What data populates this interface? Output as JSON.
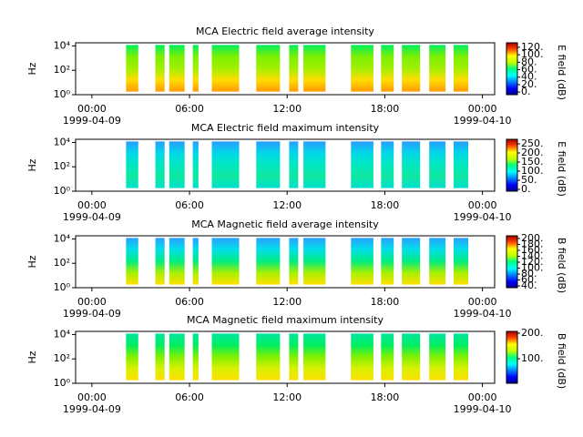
{
  "chart_data": [
    {
      "type": "spectrogram",
      "title": "MCA  Electric field average intensity",
      "ylabel": "Hz",
      "clabel": "E field (dB)",
      "xlim": [
        -1,
        24.75
      ],
      "xticks": [
        {
          "value": 0,
          "label": "00:00"
        },
        {
          "value": 6,
          "label": "06:00"
        },
        {
          "value": 12,
          "label": "12:00"
        },
        {
          "value": 18,
          "label": "18:00"
        },
        {
          "value": 24,
          "label": "00:00"
        }
      ],
      "date_labels": [
        "1999-04-09",
        "1999-04-10"
      ],
      "ylim": [
        1,
        18000
      ],
      "yscale": "log",
      "yticks": [
        {
          "value": 1,
          "label": "10⁰"
        },
        {
          "value": 100,
          "label": "10²"
        },
        {
          "value": 10000,
          "label": "10⁴"
        }
      ],
      "clim": [
        -7,
        132
      ],
      "cticks": [
        {
          "value": 0,
          "label": "0."
        },
        {
          "value": 20,
          "label": "20."
        },
        {
          "value": 40,
          "label": "40."
        },
        {
          "value": 60,
          "label": "60."
        },
        {
          "value": 80,
          "label": "80."
        },
        {
          "value": 100,
          "label": "100."
        },
        {
          "value": 120,
          "label": "120."
        }
      ],
      "freq_range": [
        1.8,
        12000
      ],
      "colors": [
        "#00ee60",
        "#7cf000",
        "#a0f000",
        "#ffdd00",
        "#ff9900"
      ],
      "segments": [
        [
          2.1,
          2.85
        ],
        [
          3.9,
          4.47
        ],
        [
          4.75,
          5.7
        ],
        [
          6.2,
          6.55
        ],
        [
          7.37,
          9.05
        ],
        [
          10.1,
          11.56
        ],
        [
          12.12,
          12.68
        ],
        [
          13.0,
          14.36
        ],
        [
          15.92,
          17.3
        ],
        [
          17.77,
          18.55
        ],
        [
          19.05,
          20.17
        ],
        [
          20.73,
          21.73
        ],
        [
          22.23,
          23.13
        ]
      ]
    },
    {
      "type": "spectrogram",
      "title": "MCA  Electric field maximum intensity",
      "ylabel": "Hz",
      "clabel": "E field (dB)",
      "xlim": [
        -1,
        24.75
      ],
      "xticks": [
        {
          "value": 0,
          "label": "00:00"
        },
        {
          "value": 6,
          "label": "06:00"
        },
        {
          "value": 12,
          "label": "12:00"
        },
        {
          "value": 18,
          "label": "18:00"
        },
        {
          "value": 24,
          "label": "00:00"
        }
      ],
      "date_labels": [
        "1999-04-09",
        "1999-04-10"
      ],
      "ylim": [
        1,
        18000
      ],
      "yscale": "log",
      "yticks": [
        {
          "value": 1,
          "label": "10⁰"
        },
        {
          "value": 100,
          "label": "10²"
        },
        {
          "value": 10000,
          "label": "10⁴"
        }
      ],
      "clim": [
        -10,
        275
      ],
      "cticks": [
        {
          "value": 0,
          "label": "0."
        },
        {
          "value": 50,
          "label": "50."
        },
        {
          "value": 100,
          "label": "100."
        },
        {
          "value": 150,
          "label": "150."
        },
        {
          "value": 200,
          "label": "200."
        },
        {
          "value": 250,
          "label": "250."
        }
      ],
      "freq_range": [
        1.8,
        12000
      ],
      "colors": [
        "#2a9cff",
        "#00d8e8",
        "#00e8c0",
        "#10e8a0",
        "#00e0d0"
      ],
      "segments": [
        [
          2.1,
          2.85
        ],
        [
          3.9,
          4.47
        ],
        [
          4.75,
          5.7
        ],
        [
          6.2,
          6.55
        ],
        [
          7.37,
          9.05
        ],
        [
          10.1,
          11.56
        ],
        [
          12.12,
          12.68
        ],
        [
          13.0,
          14.36
        ],
        [
          15.92,
          17.3
        ],
        [
          17.77,
          18.55
        ],
        [
          19.05,
          20.17
        ],
        [
          20.73,
          21.73
        ],
        [
          22.23,
          23.13
        ]
      ]
    },
    {
      "type": "spectrogram",
      "title": "MCA  Magnetic field average intensity",
      "ylabel": "Hz",
      "clabel": "B field (dB)",
      "xlim": [
        -1,
        24.75
      ],
      "xticks": [
        {
          "value": 0,
          "label": "00:00"
        },
        {
          "value": 6,
          "label": "06:00"
        },
        {
          "value": 12,
          "label": "12:00"
        },
        {
          "value": 18,
          "label": "18:00"
        },
        {
          "value": 24,
          "label": "00:00"
        }
      ],
      "date_labels": [
        "1999-04-09",
        "1999-04-10"
      ],
      "ylim": [
        1,
        18000
      ],
      "yscale": "log",
      "yticks": [
        {
          "value": 1,
          "label": "10⁰"
        },
        {
          "value": 100,
          "label": "10²"
        },
        {
          "value": 10000,
          "label": "10⁴"
        }
      ],
      "clim": [
        34,
        209
      ],
      "cticks": [
        {
          "value": 40,
          "label": "40."
        },
        {
          "value": 60,
          "label": "60."
        },
        {
          "value": 80,
          "label": "80."
        },
        {
          "value": 100,
          "label": "100."
        },
        {
          "value": 120,
          "label": "120."
        },
        {
          "value": 140,
          "label": "140."
        },
        {
          "value": 160,
          "label": "160."
        },
        {
          "value": 180,
          "label": "180."
        },
        {
          "value": 200,
          "label": "200."
        }
      ],
      "freq_range": [
        1.8,
        12000
      ],
      "colors": [
        "#2aa0ff",
        "#00e0e8",
        "#00ec80",
        "#a8f000",
        "#ffe000"
      ],
      "segments": [
        [
          2.1,
          2.85
        ],
        [
          3.9,
          4.47
        ],
        [
          4.75,
          5.7
        ],
        [
          6.2,
          6.55
        ],
        [
          7.37,
          9.05
        ],
        [
          10.1,
          11.56
        ],
        [
          12.12,
          12.68
        ],
        [
          13.0,
          14.36
        ],
        [
          15.92,
          17.3
        ],
        [
          17.77,
          18.55
        ],
        [
          19.05,
          20.17
        ],
        [
          20.73,
          21.73
        ],
        [
          22.23,
          23.13
        ]
      ]
    },
    {
      "type": "spectrogram",
      "title": "MCA  Magnetic field maximum intensity",
      "ylabel": "Hz",
      "clabel": "B field (dB)",
      "xlim": [
        -1,
        24.75
      ],
      "xticks": [
        {
          "value": 0,
          "label": "00:00"
        },
        {
          "value": 6,
          "label": "06:00"
        },
        {
          "value": 12,
          "label": "12:00"
        },
        {
          "value": 18,
          "label": "18:00"
        },
        {
          "value": 24,
          "label": "00:00"
        }
      ],
      "date_labels": [
        "1999-04-09",
        "1999-04-10"
      ],
      "ylim": [
        1,
        18000
      ],
      "yscale": "log",
      "yticks": [
        {
          "value": 1,
          "label": "10⁰"
        },
        {
          "value": 100,
          "label": "10²"
        },
        {
          "value": 10000,
          "label": "10⁴"
        }
      ],
      "clim": [
        4,
        207
      ],
      "cticks": [
        {
          "value": 100,
          "label": "100."
        },
        {
          "value": 200,
          "label": "200."
        }
      ],
      "freq_range": [
        1.8,
        12000
      ],
      "colors": [
        "#00e6a0",
        "#00ee60",
        "#80f000",
        "#d8f000",
        "#ffe000"
      ],
      "segments": [
        [
          2.1,
          2.85
        ],
        [
          3.9,
          4.47
        ],
        [
          4.75,
          5.7
        ],
        [
          6.2,
          6.55
        ],
        [
          7.37,
          9.05
        ],
        [
          10.1,
          11.56
        ],
        [
          12.12,
          12.68
        ],
        [
          13.0,
          14.36
        ],
        [
          15.92,
          17.3
        ],
        [
          17.77,
          18.55
        ],
        [
          19.05,
          20.17
        ],
        [
          20.73,
          21.73
        ],
        [
          22.23,
          23.13
        ]
      ]
    }
  ]
}
